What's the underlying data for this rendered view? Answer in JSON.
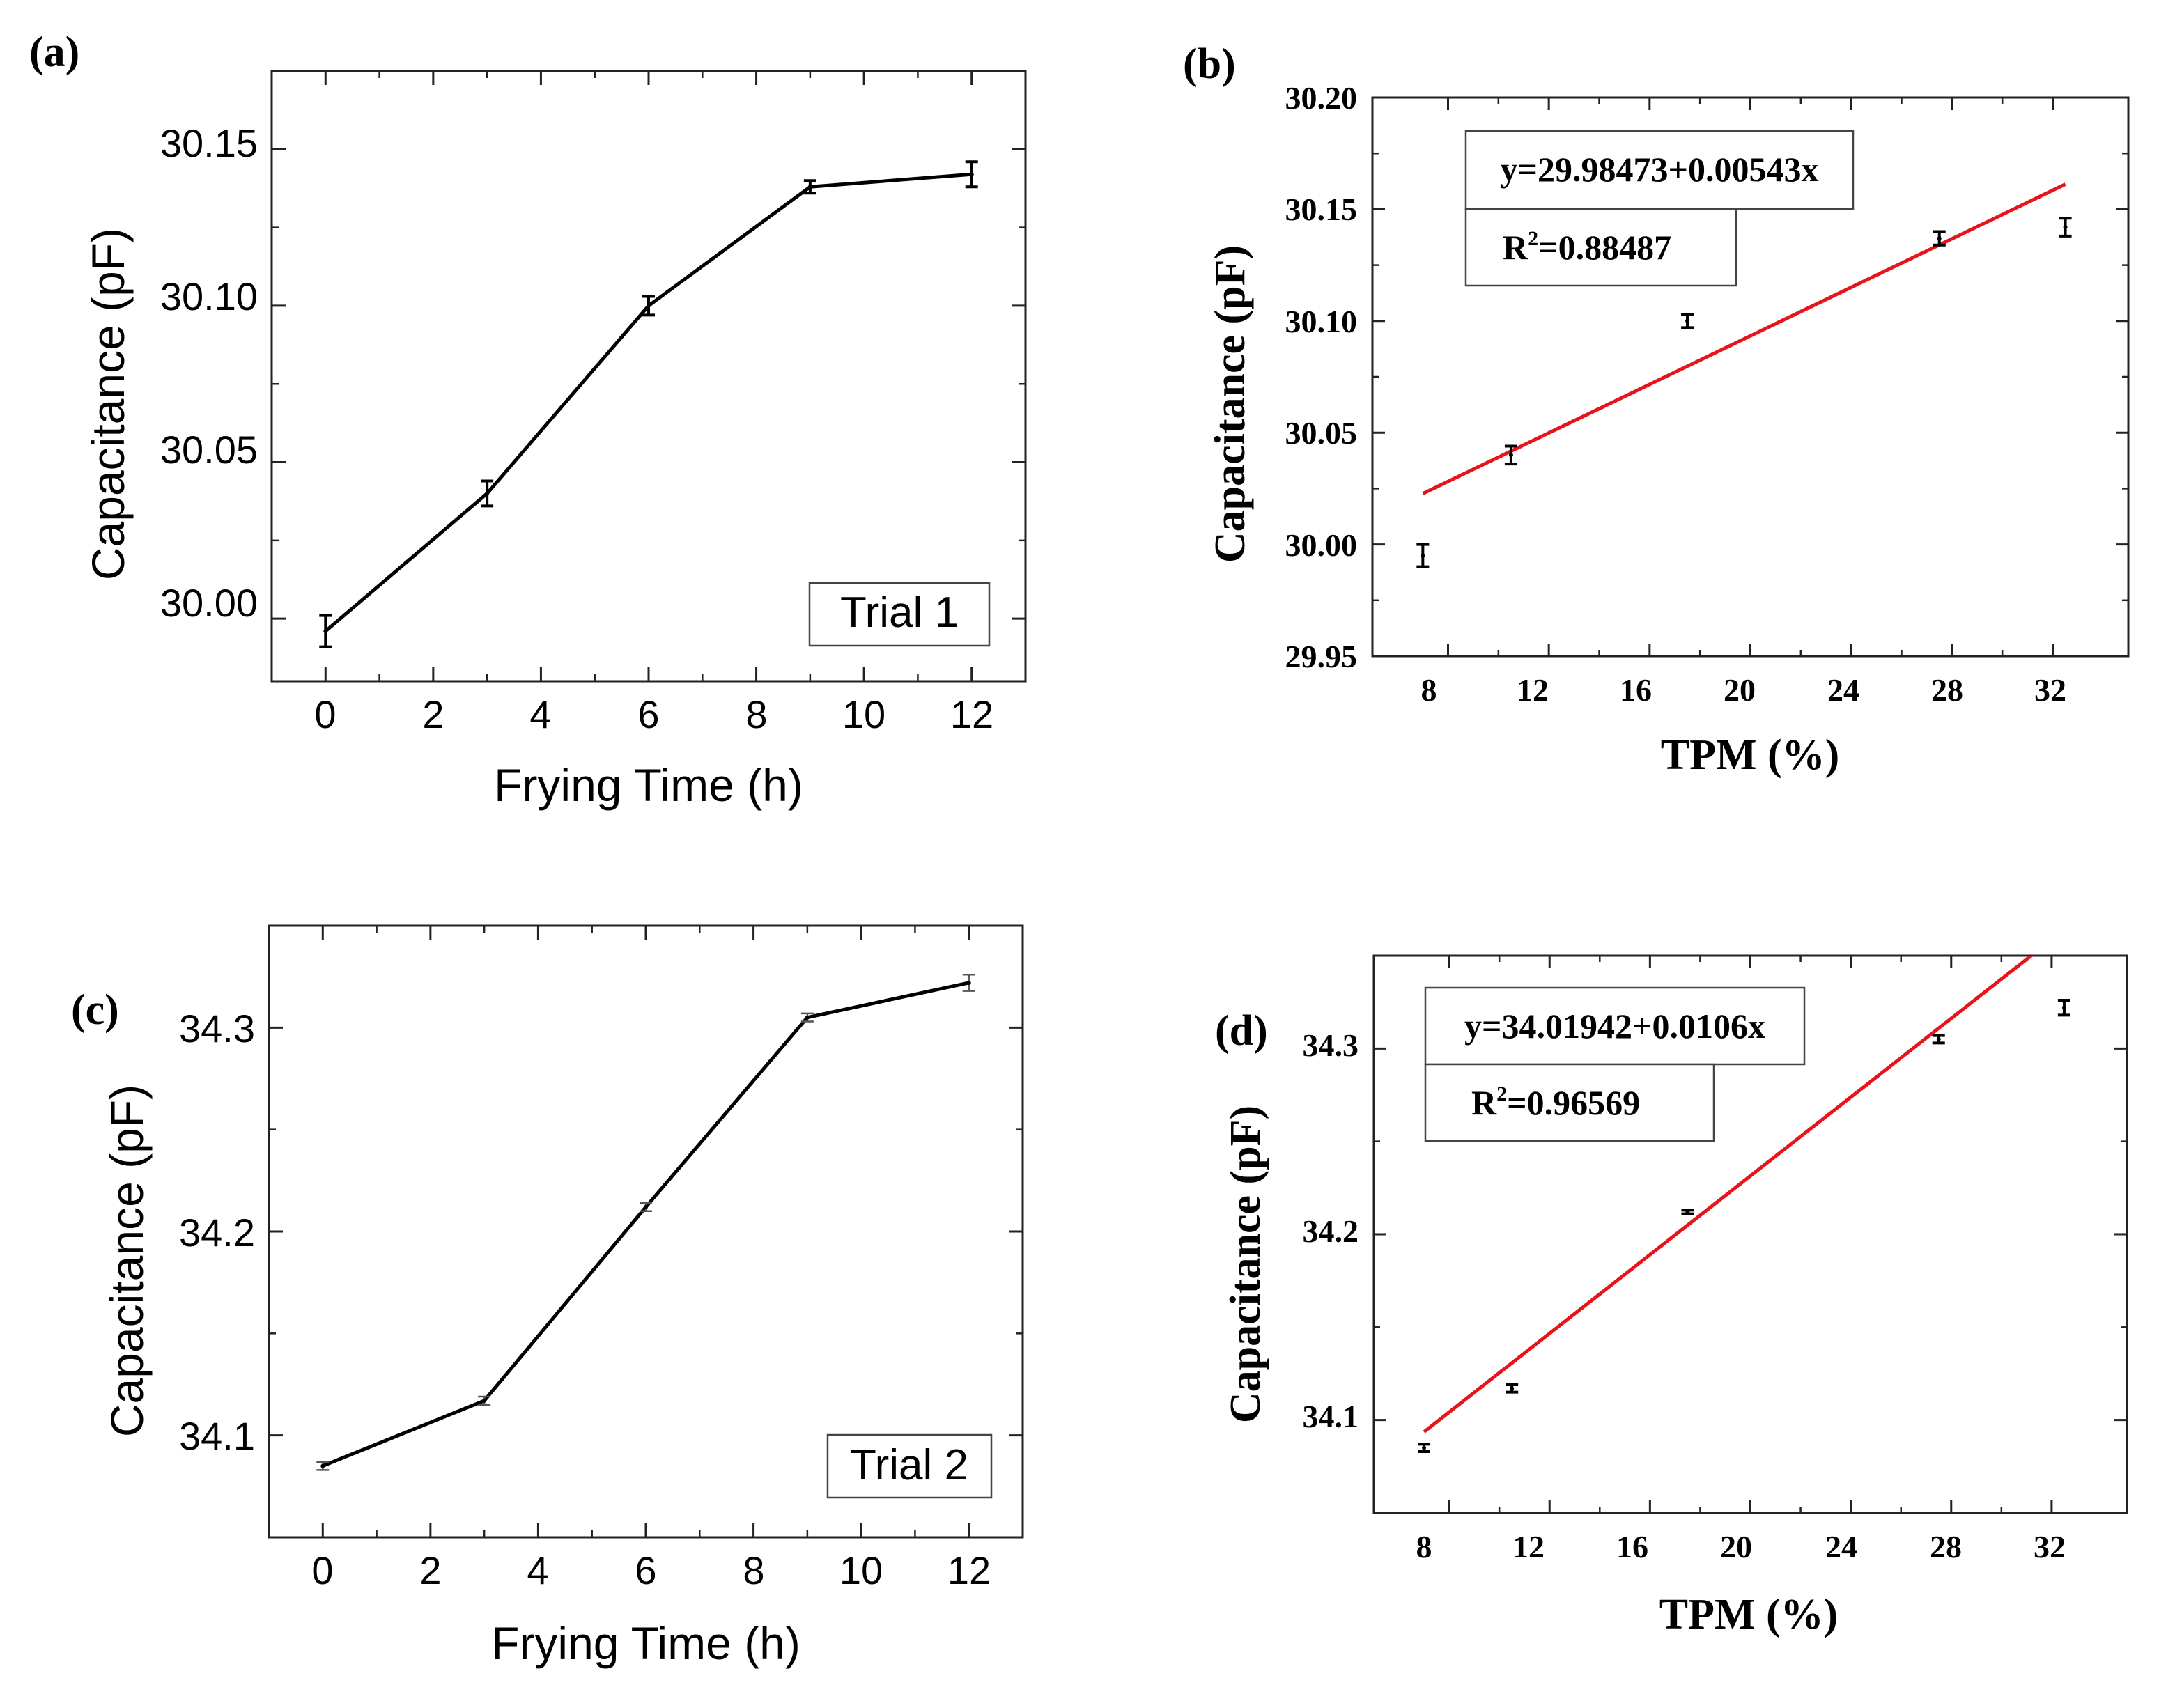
{
  "figure": {
    "panels": [
      "(a)",
      "(b)",
      "(c)",
      "(d)"
    ]
  },
  "colors": {
    "line": "#000000",
    "fit": "#e8141c",
    "axis": "#222222",
    "errorbar": "#555555"
  },
  "chart_data": [
    {
      "panel": "(a)",
      "type": "line",
      "xlabel": "Frying Time (h)",
      "ylabel": "Capacitance (pF)",
      "xlim": [
        -1,
        13
      ],
      "ylim": [
        29.98,
        30.175
      ],
      "xticks": [
        0,
        2,
        4,
        6,
        8,
        10,
        12
      ],
      "yticks": [
        30.0,
        30.05,
        30.1,
        30.15
      ],
      "ytick_labels": [
        "30.00",
        "30.05",
        "30.10",
        "30.15"
      ],
      "series": [
        {
          "name": "Trial 1",
          "x": [
            0,
            3,
            6,
            9,
            12
          ],
          "y": [
            29.996,
            30.04,
            30.1,
            30.138,
            30.142
          ],
          "err": [
            0.005,
            0.004,
            0.003,
            0.002,
            0.004
          ]
        }
      ],
      "legend": "Trial 1",
      "legend_position": "bottom-right"
    },
    {
      "panel": "(b)",
      "type": "scatter",
      "xlabel": "TPM (%)",
      "ylabel": "Capacitance (pF)",
      "xlim": [
        5,
        35
      ],
      "ylim": [
        29.95,
        30.2
      ],
      "xticks": [
        8,
        12,
        16,
        20,
        24,
        28,
        32
      ],
      "yticks": [
        29.95,
        30.0,
        30.05,
        30.1,
        30.15,
        30.2
      ],
      "ytick_labels": [
        "29.95",
        "30.00",
        "30.05",
        "30.10",
        "30.15",
        "30.20"
      ],
      "series": [
        {
          "name": "data",
          "x": [
            7,
            10.5,
            17.5,
            27.5,
            32.5
          ],
          "y": [
            29.995,
            30.04,
            30.1,
            30.137,
            30.142
          ],
          "err": [
            0.005,
            0.004,
            0.003,
            0.003,
            0.004
          ]
        }
      ],
      "fit": {
        "intercept": 29.98473,
        "slope": 0.00543,
        "x_range": [
          7,
          32.5
        ]
      },
      "equation": "y=29.98473+0.00543x",
      "r2_label": "R",
      "r2_sup": "2",
      "r2_value": "=0.88487",
      "annotation_position": "top-left"
    },
    {
      "panel": "(c)",
      "type": "line",
      "xlabel": "Frying Time (h)",
      "ylabel": "Capacitance (pF)",
      "xlim": [
        -1,
        13
      ],
      "ylim": [
        34.05,
        34.35
      ],
      "xticks": [
        0,
        2,
        4,
        6,
        8,
        10,
        12
      ],
      "yticks": [
        34.1,
        34.2,
        34.3
      ],
      "ytick_labels": [
        "34.1",
        "34.2",
        "34.3"
      ],
      "series": [
        {
          "name": "Trial 2",
          "x": [
            0,
            3,
            6,
            9,
            12
          ],
          "y": [
            34.085,
            34.117,
            34.212,
            34.305,
            34.322
          ],
          "err": [
            0.002,
            0.002,
            0.002,
            0.002,
            0.004
          ]
        }
      ],
      "legend": "Trial 2",
      "legend_position": "bottom-right"
    },
    {
      "panel": "(d)",
      "type": "scatter",
      "xlabel": "TPM (%)",
      "ylabel": "Capacitance (pF)",
      "xlim": [
        5,
        35
      ],
      "ylim": [
        34.05,
        34.35
      ],
      "xticks": [
        8,
        12,
        16,
        20,
        24,
        28,
        32
      ],
      "yticks": [
        34.1,
        34.2,
        34.3
      ],
      "ytick_labels": [
        "34.1",
        "34.2",
        "34.3"
      ],
      "series": [
        {
          "name": "data",
          "x": [
            7,
            10.5,
            17.5,
            27.5,
            32.5
          ],
          "y": [
            34.085,
            34.117,
            34.212,
            34.305,
            34.322
          ],
          "err": [
            0.002,
            0.002,
            0.001,
            0.002,
            0.004
          ]
        }
      ],
      "fit": {
        "intercept": 34.01942,
        "slope": 0.0106,
        "x_range": [
          7,
          32.5
        ]
      },
      "equation": "y=34.01942+0.0106x",
      "r2_label": "R",
      "r2_sup": "2",
      "r2_value": "=0.96569",
      "annotation_position": "top-left"
    }
  ]
}
